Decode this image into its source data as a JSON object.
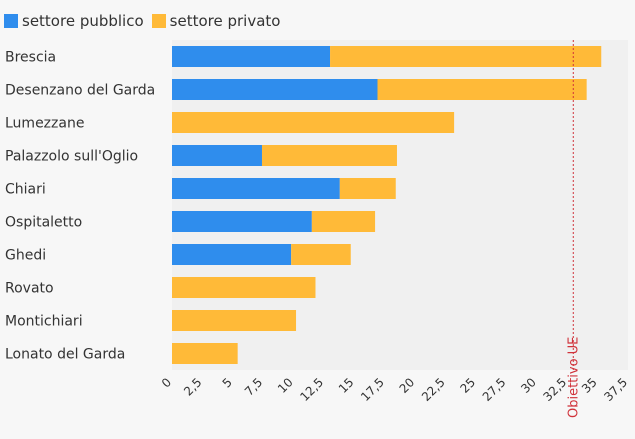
{
  "legend": {
    "public_label": "settore pubblico",
    "private_label": "settore privato"
  },
  "colors": {
    "public": "#2f8ded",
    "private": "#ffba38",
    "reference": "#d0323a",
    "plot_bg": "#f0f0f0"
  },
  "chart_data": {
    "type": "bar",
    "orientation": "horizontal",
    "stacked": true,
    "categories": [
      "Brescia",
      "Desenzano del Garda",
      "Lumezzane",
      "Palazzolo sull'Oglio",
      "Chiari",
      "Ospitaletto",
      "Ghedi",
      "Rovato",
      "Montichiari",
      "Lonato del Garda"
    ],
    "series": [
      {
        "name": "settore pubblico",
        "values": [
          13.0,
          16.9,
          0,
          7.4,
          13.8,
          11.5,
          9.8,
          0,
          0,
          0
        ]
      },
      {
        "name": "settore privato",
        "values": [
          22.3,
          17.2,
          23.2,
          11.1,
          4.6,
          5.2,
          4.9,
          11.8,
          10.2,
          5.4
        ]
      }
    ],
    "xlim": [
      0,
      37.5
    ],
    "xticks": [
      "0",
      "2,5",
      "5",
      "7,5",
      "10",
      "12,5",
      "15",
      "17,5",
      "20",
      "22,5",
      "25",
      "27,5",
      "30",
      "32,5",
      "35",
      "37,5"
    ],
    "reference_line": {
      "value": 33,
      "label": "Obiettivo UE"
    },
    "legend_position": "top-left",
    "grid": false
  }
}
